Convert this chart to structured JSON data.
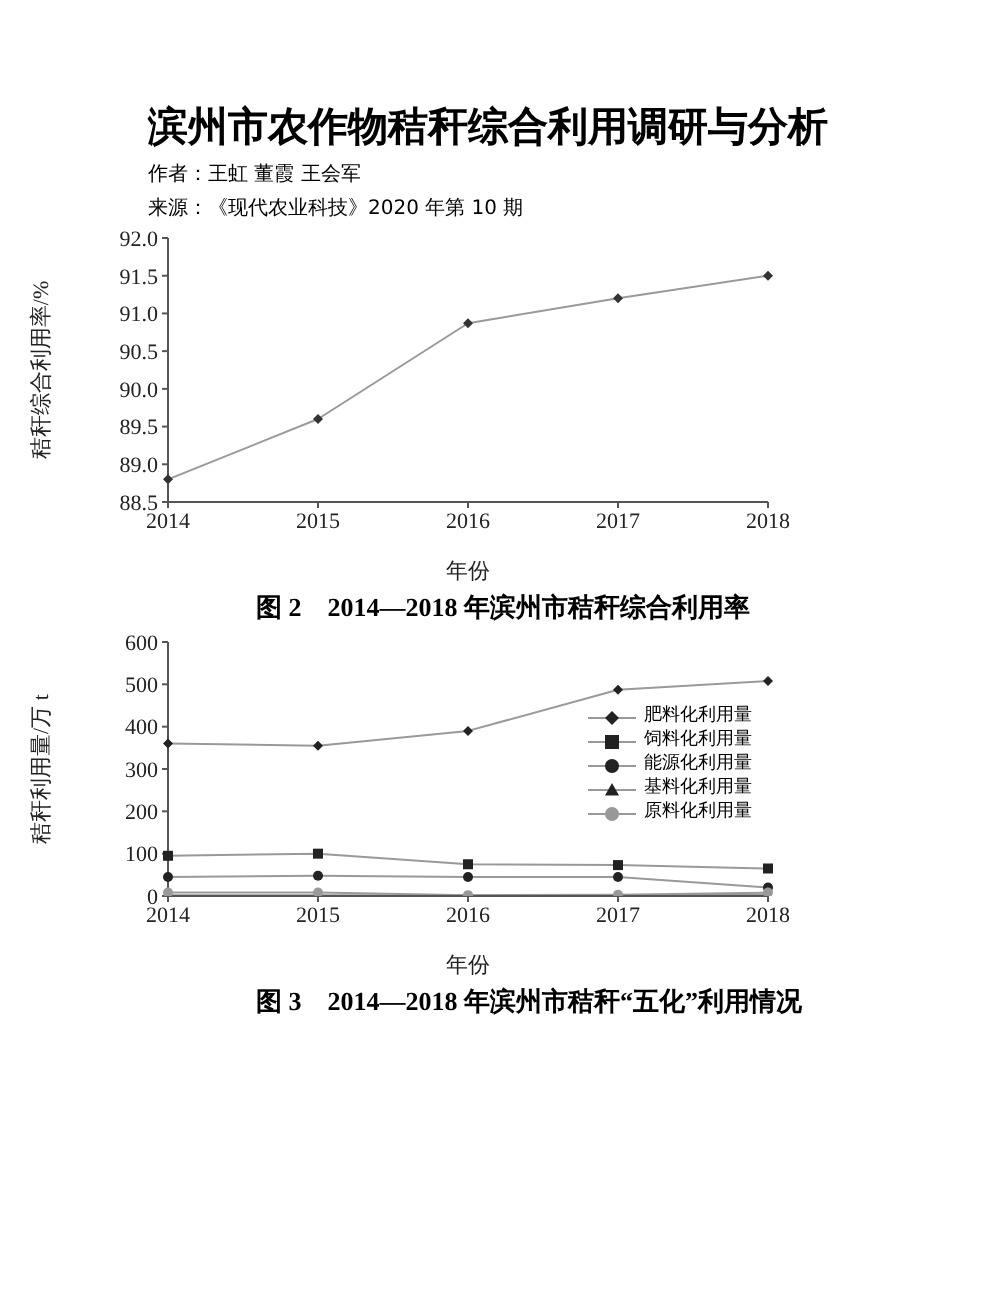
{
  "chart_data": [
    {
      "type": "line",
      "title": "图 2　2014—2018 年滨州市秸秆综合利用率",
      "annotations": [
        "滨州市农作物秸秆综合利用调研与分析",
        "作者：王虹 董霞 王会军",
        "来源：《现代农业科技》2020 年第 10 期"
      ],
      "xlabel": "年份",
      "ylabel": "秸秆综合利用率/%",
      "categories": [
        "2014",
        "2015",
        "2016",
        "2017",
        "2018"
      ],
      "series": [
        {
          "color": "#333333",
          "values": [
            88.8,
            89.6,
            90.87,
            91.2,
            91.5
          ]
        }
      ],
      "ylim": [
        88.5,
        92.0
      ],
      "yticks": [
        {
          "value": 88.5,
          "label": "88.5"
        },
        {
          "value": 89,
          "label": "89.0"
        },
        {
          "value": 89.5,
          "label": "89.5"
        },
        {
          "value": 90,
          "label": "90.0"
        },
        {
          "value": 90.5,
          "label": "90.5"
        },
        {
          "value": 91,
          "label": "91.0"
        },
        {
          "value": 91.5,
          "label": "91.5"
        },
        {
          "value": 92,
          "label": "92.0"
        }
      ],
      "legend": false,
      "marker": "diamond"
    },
    {
      "type": "line",
      "title": "图 3　2014—2018 年滨州市秸秆“五化”利用情况",
      "xlabel": "年份",
      "ylabel": "秸秆利用量/万 t",
      "categories": [
        "2014",
        "2015",
        "2016",
        "2017",
        "2018"
      ],
      "series": [
        {
          "name": "肥料化利用量",
          "color": "#222222",
          "marker": "diamond",
          "values": [
            360,
            355,
            390,
            487,
            508
          ]
        },
        {
          "name": "饲料化利用量",
          "color": "#222222",
          "marker": "square",
          "values": [
            95,
            100,
            75,
            73,
            65
          ]
        },
        {
          "name": "能源化利用量",
          "color": "#222222",
          "marker": "circle",
          "values": [
            45,
            48,
            45,
            45,
            20
          ]
        },
        {
          "name": "基料化利用量",
          "color": "#222222",
          "marker": "triangle",
          "values": [
            2,
            2,
            1,
            2,
            3
          ]
        },
        {
          "name": "原料化利用量",
          "color": "#999999",
          "marker": "circle",
          "values": [
            8,
            8,
            2,
            3,
            8
          ]
        }
      ],
      "ylim": [
        0,
        600
      ],
      "yticks": [
        0,
        100,
        200,
        300,
        400,
        500,
        600
      ],
      "legend": "right"
    }
  ]
}
